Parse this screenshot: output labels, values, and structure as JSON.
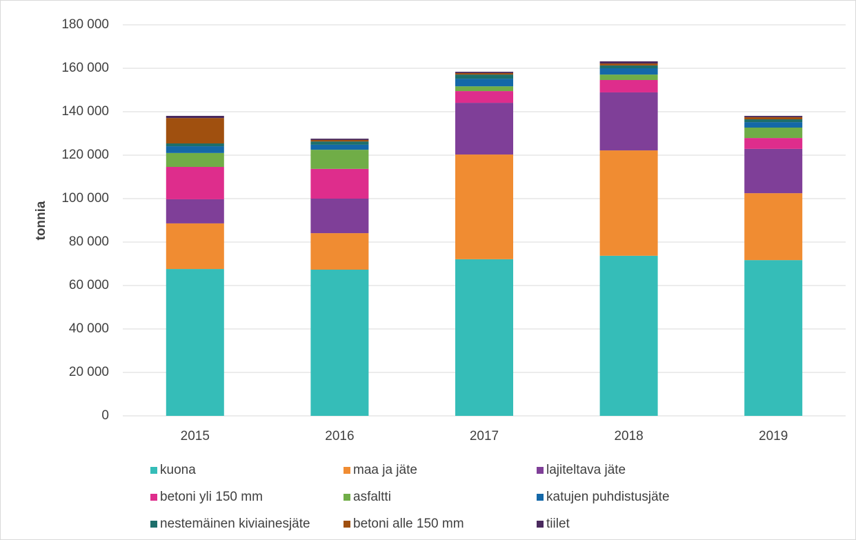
{
  "chart_data": {
    "type": "stacked_bar",
    "y_label": "tonnia",
    "categories": [
      "2015",
      "2016",
      "2017",
      "2018",
      "2019"
    ],
    "series": [
      {
        "name": "kuona",
        "color": "#35bdb8",
        "values": [
          67600,
          67300,
          72100,
          73700,
          71700
        ]
      },
      {
        "name": "maa ja jäte",
        "color": "#f08c32",
        "values": [
          21000,
          16800,
          48200,
          48500,
          30800
        ]
      },
      {
        "name": "lajiteltava jäte",
        "color": "#7f3f98",
        "values": [
          11100,
          15900,
          23800,
          26700,
          20400
        ]
      },
      {
        "name": "betoni yli 150 mm",
        "color": "#de2d8c",
        "values": [
          14900,
          13700,
          5400,
          5700,
          5000
        ]
      },
      {
        "name": "asfaltti",
        "color": "#70ad47",
        "values": [
          6400,
          8800,
          2200,
          2500,
          4800
        ]
      },
      {
        "name": "katujen puhdistusjäte",
        "color": "#1468a8",
        "values": [
          3100,
          2300,
          3500,
          2900,
          2500
        ]
      },
      {
        "name": "nestemäinen kiviainesjäte",
        "color": "#1d6f6b",
        "values": [
          1300,
          1500,
          1900,
          1300,
          1300
        ]
      },
      {
        "name": "betoni alle 150 mm",
        "color": "#a0500f",
        "values": [
          11700,
          700,
          700,
          900,
          1000
        ]
      },
      {
        "name": "tiilet",
        "color": "#4a2a5e",
        "values": [
          1000,
          600,
          600,
          1000,
          600
        ]
      }
    ],
    "ylim": [
      0,
      180000
    ],
    "yticks": [
      0,
      {
        "value": 20000,
        "label": "20 000"
      },
      {
        "value": 40000,
        "label": "40 000"
      },
      {
        "value": 60000,
        "label": "60 000"
      },
      {
        "value": 80000,
        "label": "80 000"
      },
      {
        "value": 100000,
        "label": "100 000"
      },
      {
        "value": 120000,
        "label": "120 000"
      },
      {
        "value": 140000,
        "label": "140 000"
      },
      {
        "value": 160000,
        "label": "160 000"
      },
      {
        "value": 180000,
        "label": "180 000"
      }
    ],
    "grid": true,
    "legend": "bottom"
  }
}
